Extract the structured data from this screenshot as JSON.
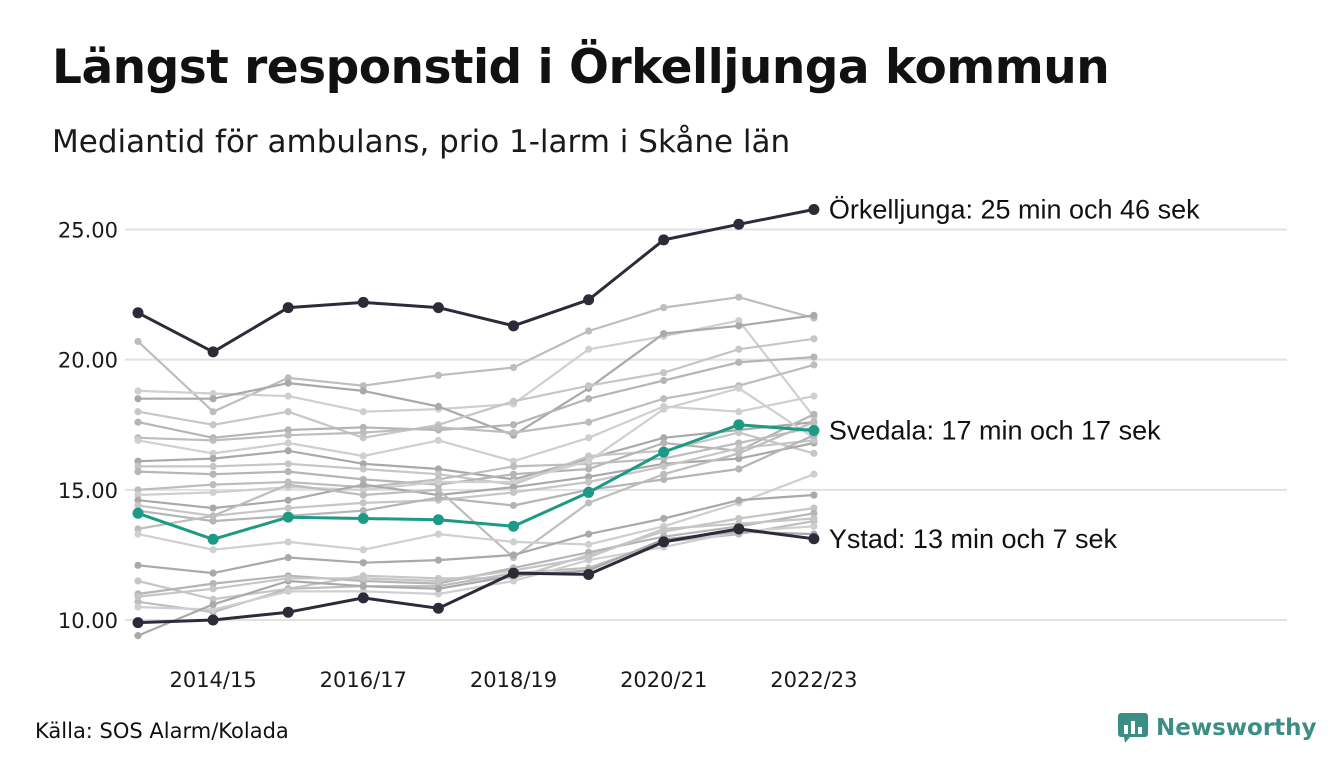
{
  "title": "Längst responstid i Örkelljunga kommun",
  "subtitle": "Mediantid för ambulans, prio 1-larm i Skåne län",
  "source": "Källa: SOS Alarm/Kolada",
  "brand": {
    "name": "Newsworthy",
    "logo_icon": "newsworthy-logo-icon",
    "color": "#3a8e83"
  },
  "colors": {
    "highlight_dark": "#2b2b3a",
    "highlight_teal": "#1d9a85",
    "background_series": "#c4c4c4",
    "grid": "#e1e1e1"
  },
  "chart_data": {
    "type": "line",
    "title": "Längst responstid i Örkelljunga kommun",
    "subtitle": "Mediantid för ambulans, prio 1-larm i Skåne län",
    "ylim": [
      9.5,
      26.5
    ],
    "y_ticks": [
      "10.00",
      "15.00",
      "20.00",
      "25.00"
    ],
    "y_tick_values": [
      10,
      15,
      20,
      25
    ],
    "x": [
      "2013/14",
      "2014/15",
      "2015/16",
      "2016/17",
      "2017/18",
      "2018/19",
      "2019/20",
      "2020/21",
      "2021/22",
      "2022/23"
    ],
    "x_tick_labels": [
      "2014/15",
      "2016/17",
      "2018/19",
      "2020/21",
      "2022/23"
    ],
    "grid": true,
    "series": [
      {
        "name": "Örkelljunga",
        "highlight": "dark",
        "label": "Örkelljunga: 25 min och 46 sek",
        "values": [
          21.8,
          20.3,
          22.0,
          22.2,
          22.0,
          21.3,
          22.3,
          24.6,
          25.2,
          25.77
        ]
      },
      {
        "name": "Svedala",
        "highlight": "teal",
        "label": "Svedala: 17 min och 17 sek",
        "values": [
          14.1,
          13.1,
          13.95,
          13.9,
          13.85,
          13.6,
          14.9,
          16.45,
          17.5,
          17.28
        ]
      },
      {
        "name": "Ystad",
        "highlight": "dark",
        "label": "Ystad: 13 min och 7 sek",
        "values": [
          9.9,
          10.0,
          10.3,
          10.85,
          10.45,
          11.8,
          11.75,
          13.0,
          13.5,
          13.12
        ]
      },
      {
        "values": [
          20.7,
          18.0,
          19.3,
          19.0,
          19.4,
          19.7,
          21.1,
          22.0,
          22.4,
          21.6
        ]
      },
      {
        "values": [
          18.8,
          18.7,
          18.6,
          18.0,
          18.1,
          18.3,
          20.4,
          20.9,
          21.5,
          17.8
        ]
      },
      {
        "values": [
          18.5,
          18.5,
          19.1,
          18.8,
          18.2,
          17.1,
          18.9,
          21.0,
          21.3,
          21.7
        ]
      },
      {
        "values": [
          18.0,
          17.5,
          18.0,
          17.0,
          17.5,
          18.4,
          19.0,
          19.5,
          20.4,
          20.8
        ]
      },
      {
        "values": [
          17.6,
          17.0,
          17.3,
          17.4,
          17.3,
          17.5,
          18.5,
          19.2,
          19.9,
          20.1
        ]
      },
      {
        "values": [
          17.0,
          16.9,
          17.1,
          17.2,
          17.4,
          17.2,
          17.6,
          18.5,
          19.0,
          19.8
        ]
      },
      {
        "values": [
          16.9,
          16.4,
          16.8,
          16.3,
          16.9,
          16.1,
          17.0,
          18.2,
          18.0,
          18.6
        ]
      },
      {
        "values": [
          16.1,
          16.2,
          16.5,
          16.0,
          15.8,
          15.4,
          16.2,
          17.0,
          17.3,
          17.6
        ]
      },
      {
        "values": [
          15.9,
          15.9,
          16.0,
          15.8,
          15.6,
          15.2,
          16.3,
          16.5,
          17.2,
          16.4
        ]
      },
      {
        "values": [
          15.7,
          15.6,
          15.7,
          15.4,
          15.2,
          15.6,
          15.8,
          16.8,
          16.5,
          17.9
        ]
      },
      {
        "values": [
          15.0,
          15.2,
          15.3,
          15.1,
          15.4,
          15.9,
          16.0,
          16.2,
          16.8,
          17.4
        ]
      },
      {
        "values": [
          14.8,
          14.9,
          15.1,
          15.0,
          15.3,
          15.3,
          16.1,
          18.1,
          18.9,
          17.0
        ]
      },
      {
        "values": [
          14.6,
          14.3,
          14.6,
          15.2,
          14.8,
          15.1,
          15.5,
          16.0,
          16.2,
          16.8
        ]
      },
      {
        "values": [
          14.4,
          14.0,
          14.3,
          14.5,
          14.6,
          14.9,
          15.3,
          15.9,
          16.6,
          16.9
        ]
      },
      {
        "values": [
          14.2,
          13.8,
          14.0,
          14.2,
          14.7,
          14.4,
          15.0,
          15.4,
          15.8,
          17.1
        ]
      },
      {
        "values": [
          13.5,
          14.0,
          15.2,
          14.8,
          15.0,
          12.4,
          14.5,
          15.6,
          16.4,
          17.6
        ]
      },
      {
        "values": [
          13.3,
          12.7,
          13.0,
          12.7,
          13.3,
          13.0,
          12.9,
          13.6,
          14.5,
          15.6
        ]
      },
      {
        "values": [
          12.1,
          11.8,
          12.4,
          12.2,
          12.3,
          12.5,
          13.3,
          13.9,
          14.6,
          14.8
        ]
      },
      {
        "values": [
          11.5,
          10.8,
          11.2,
          11.7,
          11.6,
          11.6,
          12.5,
          13.4,
          13.9,
          14.3
        ]
      },
      {
        "values": [
          11.0,
          11.4,
          11.7,
          11.5,
          11.4,
          12.0,
          12.6,
          13.2,
          13.6,
          14.1
        ]
      },
      {
        "values": [
          10.7,
          10.3,
          11.2,
          11.3,
          11.3,
          11.8,
          12.0,
          13.0,
          13.3,
          13.8
        ]
      },
      {
        "values": [
          10.5,
          10.4,
          11.1,
          11.1,
          11.0,
          11.5,
          12.3,
          12.8,
          13.4,
          13.6
        ]
      },
      {
        "values": [
          9.4,
          10.6,
          11.5,
          11.3,
          11.2,
          11.7,
          11.9,
          13.1,
          13.4,
          13.3
        ]
      },
      {
        "values": [
          10.9,
          11.2,
          11.6,
          11.6,
          11.5,
          11.9,
          12.4,
          13.5,
          13.7,
          13.9
        ]
      }
    ]
  }
}
